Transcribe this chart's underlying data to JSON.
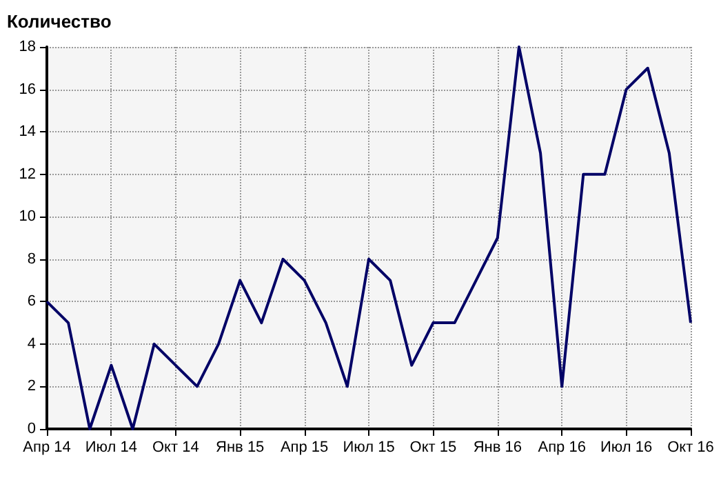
{
  "chart_data": {
    "type": "line",
    "ylabel": "Количество",
    "categories": [
      "Апр 14",
      null,
      null,
      "Июл 14",
      null,
      null,
      "Окт 14",
      null,
      null,
      "Янв 15",
      null,
      null,
      "Апр 15",
      null,
      null,
      "Июл 15",
      null,
      null,
      "Окт 15",
      null,
      null,
      "Янв 16",
      null,
      null,
      "Апр 16",
      null,
      null,
      "Июл 16",
      null,
      null,
      "Окт 16"
    ],
    "series": [
      {
        "color": "#000066",
        "values": [
          6,
          5,
          0,
          3,
          0,
          4,
          3,
          2,
          4,
          7,
          5,
          8,
          7,
          5,
          2,
          8,
          7,
          3,
          5,
          5,
          7,
          9,
          18,
          13,
          2,
          12,
          12,
          16,
          17,
          13,
          5
        ]
      }
    ],
    "ylim": [
      0,
      18
    ],
    "yticks": [
      0,
      2,
      4,
      6,
      8,
      10,
      12,
      14,
      16,
      18
    ],
    "grid": true,
    "marker": "none",
    "line_style": "solid"
  }
}
